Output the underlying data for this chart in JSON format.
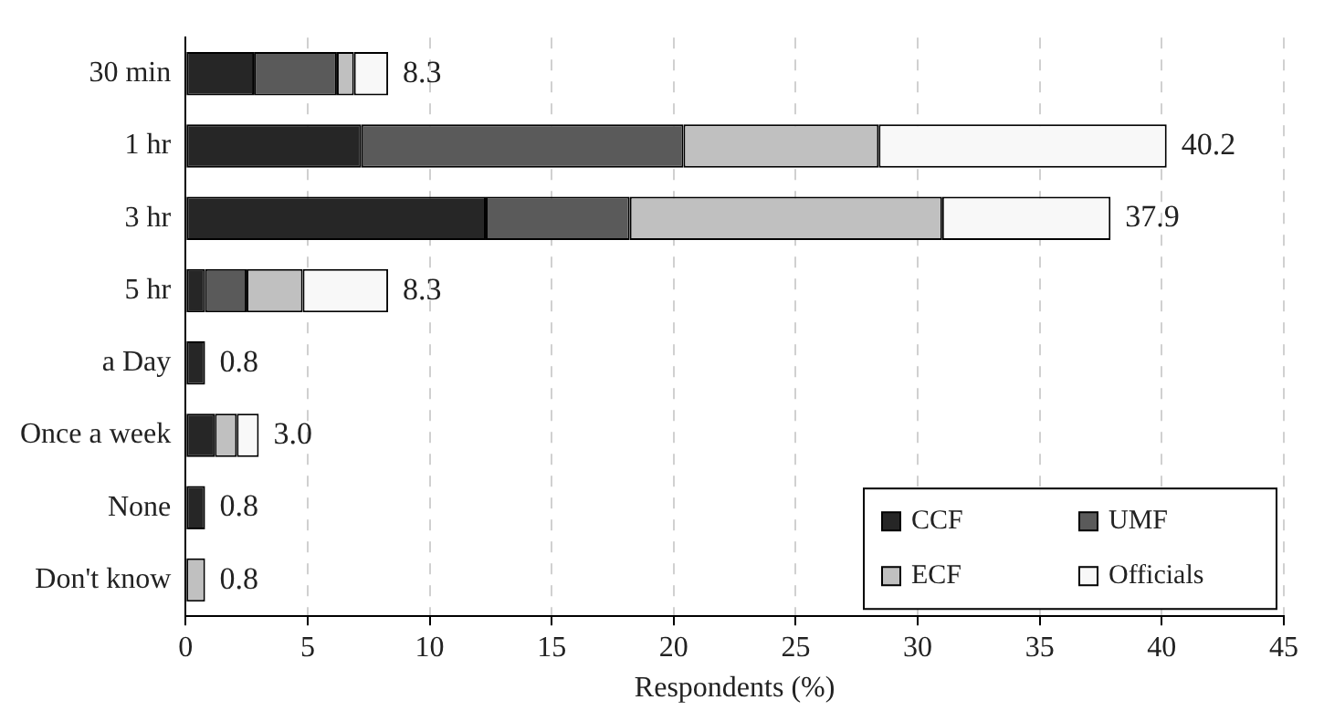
{
  "chart_data": {
    "type": "bar",
    "orientation": "horizontal",
    "stacked": true,
    "xlabel": "Respondents (%)",
    "categories": [
      "30 min",
      "1 hr",
      "3 hr",
      "5 hr",
      "a Day",
      "Once a week",
      "None",
      "Don't know"
    ],
    "series": [
      {
        "name": "CCF",
        "color": "#262626",
        "values": [
          2.8,
          7.2,
          12.3,
          0.8,
          0.8,
          1.2,
          0.8,
          0
        ]
      },
      {
        "name": "UMF",
        "color": "#5a5a5a",
        "values": [
          3.4,
          13.2,
          5.9,
          1.7,
          0,
          0,
          0,
          0
        ]
      },
      {
        "name": "ECF",
        "color": "#c0c0c0",
        "values": [
          0.7,
          8.0,
          12.8,
          2.3,
          0,
          0.9,
          0,
          0.8
        ]
      },
      {
        "name": "Officials",
        "color": "#f8f8f8",
        "values": [
          1.4,
          11.8,
          6.9,
          3.5,
          0,
          0.9,
          0,
          0
        ]
      }
    ],
    "totals": [
      "8.3",
      "40.2",
      "37.9",
      "8.3",
      "0.8",
      "3.0",
      "0.8",
      "0.8"
    ],
    "xlim": [
      0,
      45
    ],
    "xticks": [
      0,
      5,
      10,
      15,
      20,
      25,
      30,
      35,
      40,
      45
    ],
    "grid": "x",
    "legend": "bottom right"
  }
}
